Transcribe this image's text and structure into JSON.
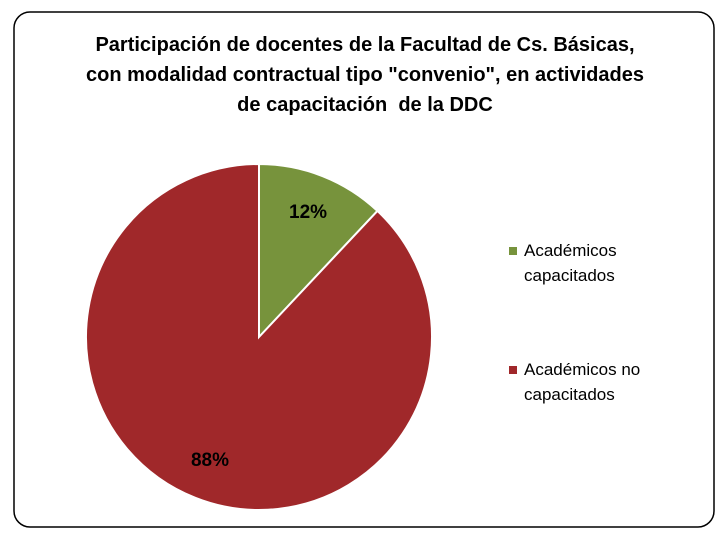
{
  "chart_data": {
    "type": "pie",
    "title": "Participación de docentes de la Facultad de Cs. Básicas, con modalidad contractual tipo \"convenio\", en actividades de capacitación  de la DDC",
    "categories": [
      "Académicos capacitados",
      "Académicos no capacitados"
    ],
    "values": [
      12,
      88
    ],
    "value_labels": [
      "12%",
      "88%"
    ],
    "colors": [
      "#77933c",
      "#a0282a"
    ],
    "legend": "right"
  }
}
